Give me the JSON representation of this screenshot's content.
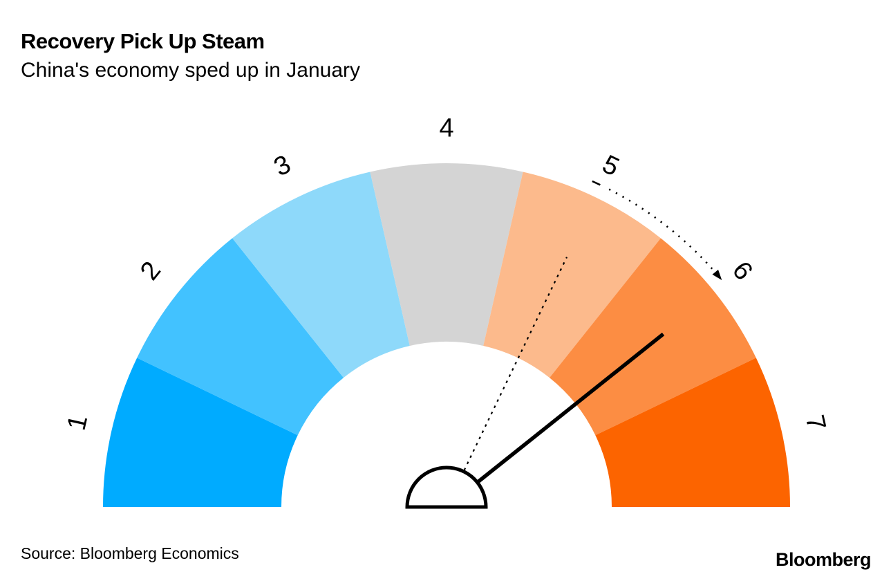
{
  "chart_data": {
    "type": "gauge",
    "title": "Recovery Pick Up Steam",
    "subtitle": "China's economy sped up in January",
    "source": "Source: Bloomberg Economics",
    "brand": "Bloomberg",
    "scale": {
      "min": 1,
      "max": 7,
      "shape": "semicircle",
      "sweep_deg": 180
    },
    "segments": [
      {
        "label": "1",
        "color": "#00ABFF"
      },
      {
        "label": "2",
        "color": "#42C2FF"
      },
      {
        "label": "3",
        "color": "#8ED9FA"
      },
      {
        "label": "4",
        "color": "#D4D4D4"
      },
      {
        "label": "5",
        "color": "#FCBA8C"
      },
      {
        "label": "6",
        "color": "#FC8D43"
      },
      {
        "label": "7",
        "color": "#FC6400"
      }
    ],
    "needles": [
      {
        "name": "previous-reading",
        "value": 5,
        "style": "dotted",
        "color": "#000000"
      },
      {
        "name": "current-reading",
        "value": 6,
        "style": "solid",
        "color": "#000000"
      }
    ],
    "movement_arrow": {
      "from": 5,
      "to": 6,
      "style": "dotted-arc",
      "color": "#000000"
    }
  }
}
